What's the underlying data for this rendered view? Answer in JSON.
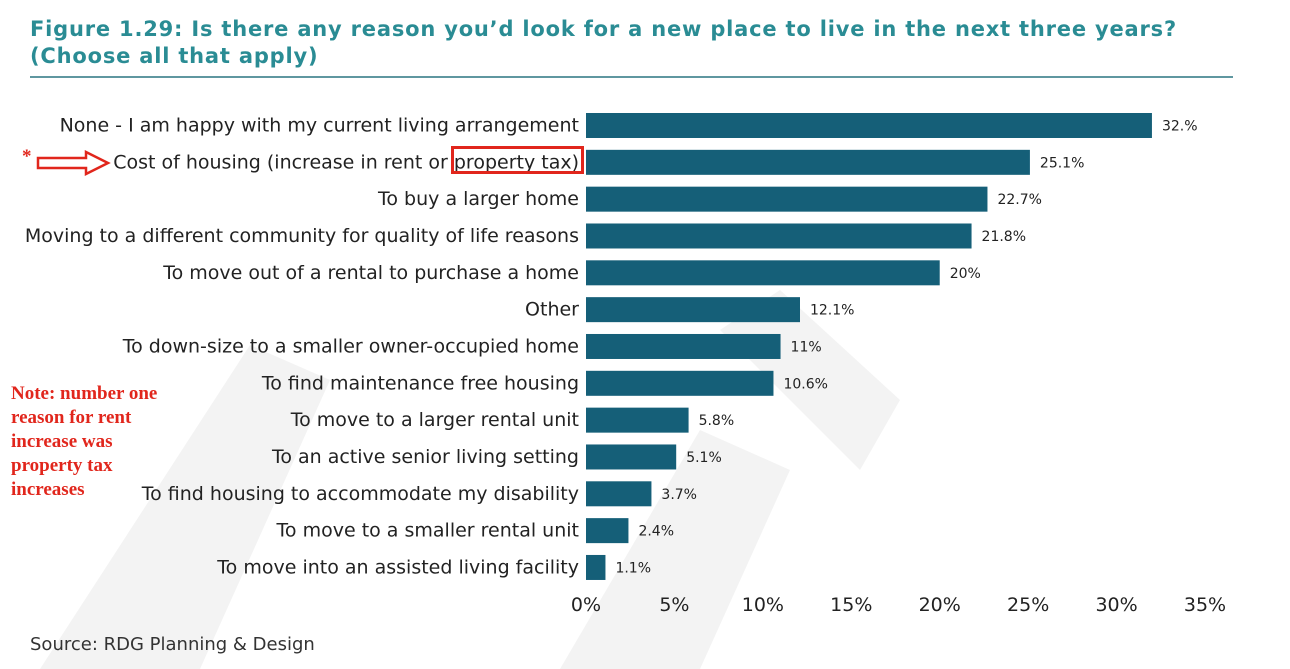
{
  "header": {
    "title": "Figure 1.29: Is there any reason you’d look for a new place to live in the next three years? (Choose all that apply)"
  },
  "annotations": {
    "star": "*",
    "note": "Note: number one reason for rent increase was property tax increases"
  },
  "footer": {
    "source": "Source: RDG Planning & Design"
  },
  "colors": {
    "bar": "#155f78",
    "title": "#2a8c94",
    "annotation": "#e1261c"
  },
  "chart_data": {
    "type": "bar",
    "orientation": "horizontal",
    "title": "Figure 1.29: Is there any reason you’d look for a new place to live in the next three years? (Choose all that apply)",
    "categories": [
      "None - I am happy with my current living arrangement",
      "Cost of housing (increase in rent or property tax)",
      "To buy a larger home",
      "Moving to a different community for quality of life reasons",
      "To move out of a rental to purchase a home",
      "Other",
      "To down-size to a smaller owner-occupied home",
      "To find maintenance free housing",
      "To move to a larger rental unit",
      "To an active senior living setting",
      "To find housing to accommodate my disability",
      "To move to a smaller rental unit",
      "To move into an assisted living facility"
    ],
    "values": [
      32.0,
      25.1,
      22.7,
      21.8,
      20.0,
      12.1,
      11.0,
      10.6,
      5.8,
      5.1,
      3.7,
      2.4,
      1.1
    ],
    "value_labels": [
      "32.%",
      "25.1%",
      "22.7%",
      "21.8%",
      "20%",
      "12.1%",
      "11%",
      "10.6%",
      "5.8%",
      "5.1%",
      "3.7%",
      "2.4%",
      "1.1%"
    ],
    "xlim": [
      0,
      35
    ],
    "xticks": [
      0,
      5,
      10,
      15,
      20,
      25,
      30,
      35
    ],
    "xtick_labels": [
      "0%",
      "5%",
      "10%",
      "15%",
      "20%",
      "25%",
      "30%",
      "35%"
    ],
    "grid": false,
    "legend": "none"
  }
}
